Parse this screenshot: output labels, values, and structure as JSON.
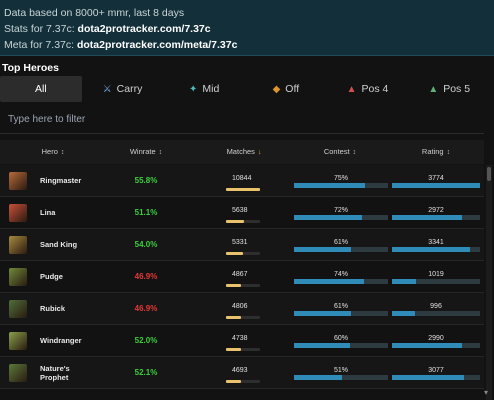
{
  "info": {
    "line1": "Data based on 8000+ mmr, last 8 days",
    "line2_prefix": "Stats for 7.37c: ",
    "line2_link": "dota2protracker.com/7.37c",
    "line3_prefix": "Meta for 7.37c: ",
    "line3_link": "dota2protracker.com/meta/7.37c"
  },
  "section_title": "Top Heroes",
  "tabs": [
    {
      "label": "All",
      "icon": ""
    },
    {
      "label": "Carry",
      "icon": "carry-icon"
    },
    {
      "label": "Mid",
      "icon": "mid-icon"
    },
    {
      "label": "Off",
      "icon": "offlane-icon"
    },
    {
      "label": "Pos 4",
      "icon": "pos4-icon"
    },
    {
      "label": "Pos 5",
      "icon": "pos5-icon"
    }
  ],
  "filter_placeholder": "Type here to filter",
  "columns": {
    "hero": "Hero",
    "winrate": "Winrate",
    "matches": "Matches",
    "contest": "Contest",
    "rating": "Rating"
  },
  "colors": {
    "win_good": "#3ccf3c",
    "win_bad": "#e53935",
    "bar_blue": "#2f8bb8",
    "bar_gold": "#e8c36a"
  },
  "heroes": [
    {
      "name": "Ringmaster",
      "winrate": "55.8%",
      "good": true,
      "matches": "10844",
      "matches_frac": 1.0,
      "contest": "75%",
      "contest_frac": 0.75,
      "rating": "3774",
      "rating_frac": 1.0
    },
    {
      "name": "Lina",
      "winrate": "51.1%",
      "good": true,
      "matches": "5638",
      "matches_frac": 0.52,
      "contest": "72%",
      "contest_frac": 0.72,
      "rating": "2972",
      "rating_frac": 0.79
    },
    {
      "name": "Sand King",
      "winrate": "54.0%",
      "good": true,
      "matches": "5331",
      "matches_frac": 0.49,
      "contest": "61%",
      "contest_frac": 0.61,
      "rating": "3341",
      "rating_frac": 0.89
    },
    {
      "name": "Pudge",
      "winrate": "46.9%",
      "good": false,
      "matches": "4867",
      "matches_frac": 0.45,
      "contest": "74%",
      "contest_frac": 0.74,
      "rating": "1019",
      "rating_frac": 0.27
    },
    {
      "name": "Rubick",
      "winrate": "46.9%",
      "good": false,
      "matches": "4806",
      "matches_frac": 0.44,
      "contest": "61%",
      "contest_frac": 0.61,
      "rating": "996",
      "rating_frac": 0.26
    },
    {
      "name": "Windranger",
      "winrate": "52.0%",
      "good": true,
      "matches": "4738",
      "matches_frac": 0.44,
      "contest": "60%",
      "contest_frac": 0.6,
      "rating": "2990",
      "rating_frac": 0.79
    },
    {
      "name": "Nature's Prophet",
      "winrate": "52.1%",
      "good": true,
      "matches": "4693",
      "matches_frac": 0.43,
      "contest": "51%",
      "contest_frac": 0.51,
      "rating": "3077",
      "rating_frac": 0.82
    }
  ],
  "avatar_colors": [
    "#b86b3a",
    "#c9503a",
    "#a88a3e",
    "#6f8a3a",
    "#4f6f3a",
    "#8aa04a",
    "#5a7a3a"
  ]
}
